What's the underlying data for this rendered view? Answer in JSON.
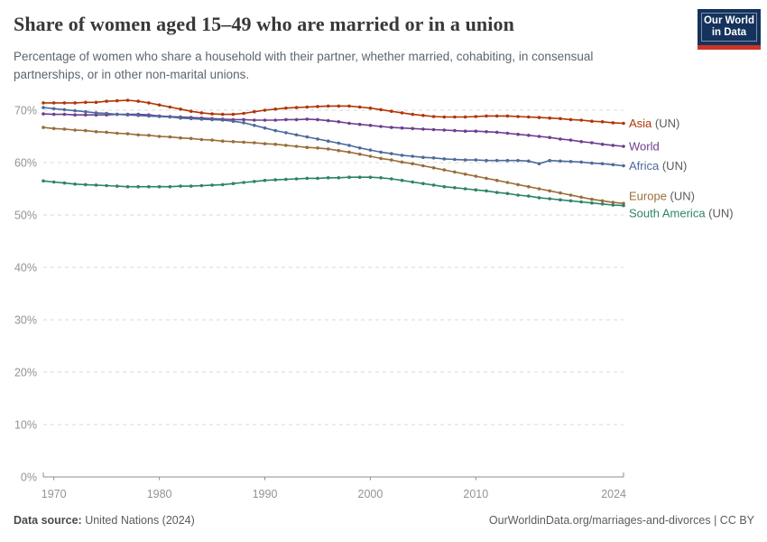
{
  "header": {
    "title": "Share of women aged 15–49 who are married or in a union",
    "subtitle_line1": "Percentage of women who share a household with their partner, whether married, cohabiting, in consensual",
    "subtitle_line2": "partnerships, or in other non-marital unions.",
    "logo": {
      "line1": "Our World",
      "line2": "in Data",
      "bg_color": "#14325C",
      "bar_color": "#CC3527"
    }
  },
  "footer": {
    "source_label": "Data source:",
    "source_value": " United Nations (2024)",
    "right_text": "OurWorldinData.org/marriages-and-divorces | CC BY"
  },
  "chart_data": {
    "type": "line",
    "title": "Share of women aged 15–49 who are married or in a union",
    "xlabel": "",
    "ylabel": "",
    "xlim": [
      1969,
      2024
    ],
    "ylim": [
      0,
      75
    ],
    "grid": "horizontal-dashed",
    "legend_position": "right-of-line-ends",
    "xticks": [
      1970,
      1980,
      1990,
      2000,
      2010,
      2024
    ],
    "xtick_labels": [
      "1970",
      "1980",
      "1990",
      "2000",
      "2010",
      "2024"
    ],
    "yticks": [
      0,
      10,
      20,
      30,
      40,
      50,
      60,
      70
    ],
    "ytick_labels": [
      "0%",
      "10%",
      "20%",
      "30%",
      "40%",
      "50%",
      "60%",
      "70%"
    ],
    "years": [
      1969,
      1970,
      1971,
      1972,
      1973,
      1974,
      1975,
      1976,
      1977,
      1978,
      1979,
      1980,
      1981,
      1982,
      1983,
      1984,
      1985,
      1986,
      1987,
      1988,
      1989,
      1990,
      1991,
      1992,
      1993,
      1994,
      1995,
      1996,
      1997,
      1998,
      1999,
      2000,
      2001,
      2002,
      2003,
      2004,
      2005,
      2006,
      2007,
      2008,
      2009,
      2010,
      2011,
      2012,
      2013,
      2014,
      2015,
      2016,
      2017,
      2018,
      2019,
      2020,
      2021,
      2022,
      2023,
      2024
    ],
    "series": [
      {
        "name": "Asia",
        "suffix": " (UN)",
        "color": "#B13507",
        "values": [
          71.4,
          71.4,
          71.4,
          71.4,
          71.5,
          71.5,
          71.7,
          71.8,
          71.9,
          71.7,
          71.4,
          71.0,
          70.6,
          70.2,
          69.8,
          69.5,
          69.3,
          69.2,
          69.2,
          69.4,
          69.7,
          70.0,
          70.2,
          70.4,
          70.5,
          70.6,
          70.7,
          70.8,
          70.8,
          70.8,
          70.6,
          70.4,
          70.1,
          69.8,
          69.5,
          69.2,
          69.0,
          68.8,
          68.7,
          68.7,
          68.7,
          68.8,
          68.9,
          68.9,
          68.9,
          68.8,
          68.7,
          68.6,
          68.5,
          68.4,
          68.2,
          68.1,
          67.9,
          67.8,
          67.6,
          67.5
        ]
      },
      {
        "name": "World",
        "suffix": "",
        "color": "#6D3E91",
        "values": [
          69.3,
          69.2,
          69.2,
          69.1,
          69.1,
          69.1,
          69.1,
          69.2,
          69.2,
          69.2,
          69.1,
          68.9,
          68.8,
          68.7,
          68.6,
          68.5,
          68.4,
          68.3,
          68.2,
          68.2,
          68.1,
          68.1,
          68.1,
          68.2,
          68.2,
          68.3,
          68.2,
          68.0,
          67.8,
          67.5,
          67.3,
          67.1,
          66.9,
          66.7,
          66.6,
          66.5,
          66.4,
          66.3,
          66.2,
          66.1,
          66.0,
          66.0,
          65.9,
          65.8,
          65.6,
          65.4,
          65.2,
          65.0,
          64.8,
          64.5,
          64.3,
          64.0,
          63.8,
          63.5,
          63.3,
          63.1
        ]
      },
      {
        "name": "Africa",
        "suffix": " (UN)",
        "color": "#4C6A9C",
        "values": [
          70.5,
          70.3,
          70.1,
          69.9,
          69.7,
          69.5,
          69.4,
          69.2,
          69.1,
          69.0,
          68.9,
          68.8,
          68.7,
          68.5,
          68.4,
          68.3,
          68.2,
          68.1,
          67.9,
          67.6,
          67.1,
          66.6,
          66.1,
          65.7,
          65.3,
          64.9,
          64.5,
          64.1,
          63.7,
          63.3,
          62.8,
          62.4,
          62.0,
          61.7,
          61.4,
          61.2,
          61.0,
          60.9,
          60.7,
          60.6,
          60.5,
          60.5,
          60.4,
          60.4,
          60.4,
          60.4,
          60.3,
          59.8,
          60.4,
          60.3,
          60.2,
          60.1,
          59.9,
          59.8,
          59.6,
          59.4
        ]
      },
      {
        "name": "Europe",
        "suffix": " (UN)",
        "color": "#996D39",
        "values": [
          66.7,
          66.5,
          66.4,
          66.2,
          66.1,
          65.9,
          65.8,
          65.6,
          65.5,
          65.3,
          65.2,
          65.0,
          64.9,
          64.7,
          64.6,
          64.4,
          64.3,
          64.1,
          64.0,
          63.9,
          63.8,
          63.6,
          63.5,
          63.3,
          63.1,
          62.9,
          62.8,
          62.6,
          62.3,
          62.0,
          61.6,
          61.2,
          60.8,
          60.5,
          60.1,
          59.8,
          59.4,
          59.0,
          58.6,
          58.2,
          57.8,
          57.4,
          57.0,
          56.6,
          56.2,
          55.8,
          55.4,
          55.0,
          54.6,
          54.2,
          53.8,
          53.4,
          53.0,
          52.7,
          52.4,
          52.2
        ]
      },
      {
        "name": "South America",
        "suffix": " (UN)",
        "color": "#2C8465",
        "values": [
          56.5,
          56.3,
          56.1,
          55.9,
          55.8,
          55.7,
          55.6,
          55.5,
          55.4,
          55.4,
          55.4,
          55.4,
          55.4,
          55.5,
          55.5,
          55.6,
          55.7,
          55.8,
          56.0,
          56.2,
          56.4,
          56.6,
          56.7,
          56.8,
          56.9,
          57.0,
          57.0,
          57.1,
          57.1,
          57.2,
          57.2,
          57.2,
          57.1,
          56.9,
          56.6,
          56.3,
          56.0,
          55.7,
          55.4,
          55.2,
          55.0,
          54.8,
          54.6,
          54.3,
          54.1,
          53.8,
          53.6,
          53.3,
          53.1,
          52.9,
          52.7,
          52.5,
          52.3,
          52.1,
          51.9,
          51.8
        ]
      }
    ]
  }
}
